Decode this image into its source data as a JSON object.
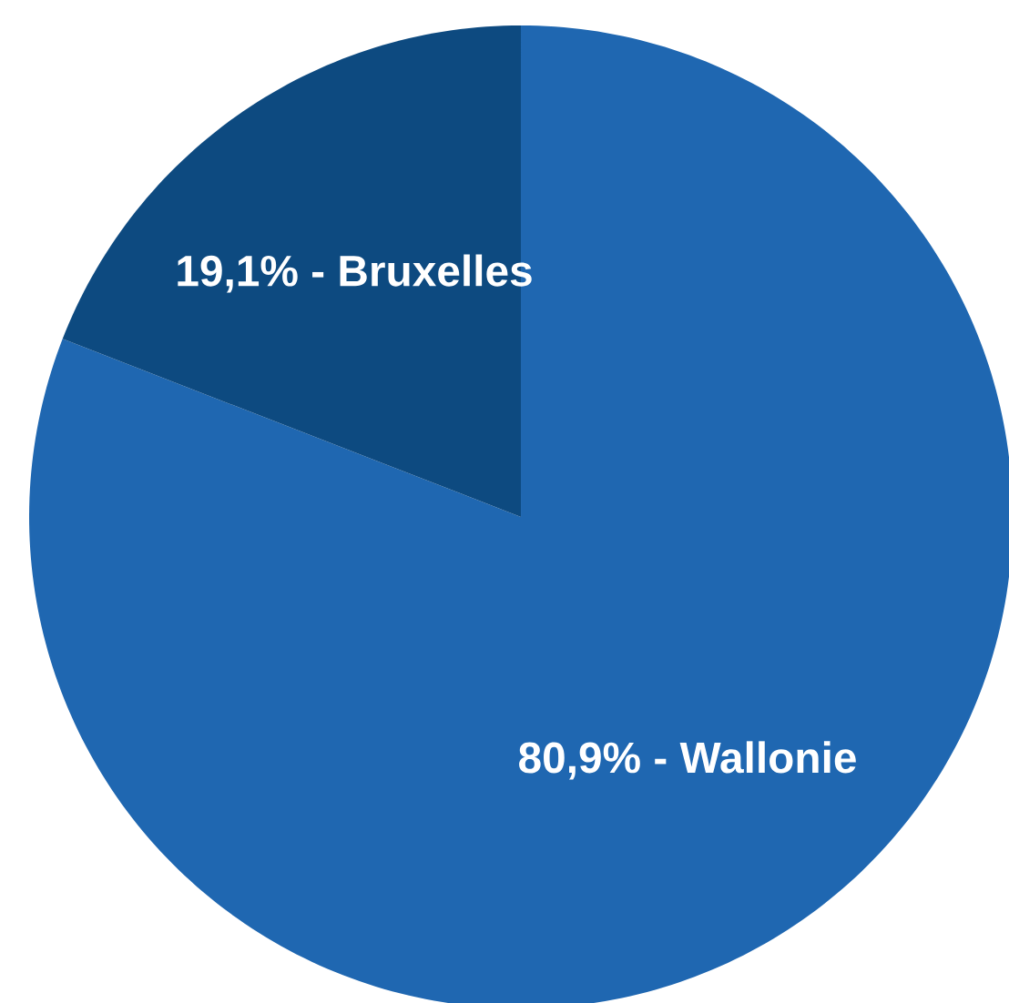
{
  "chart_data": {
    "type": "pie",
    "categories": [
      "80,9% - Wallonie",
      "19,1% - Bruxelles"
    ],
    "values": [
      80.9,
      19.1
    ],
    "colors": [
      "#1f67b1",
      "#0d4a80"
    ]
  }
}
